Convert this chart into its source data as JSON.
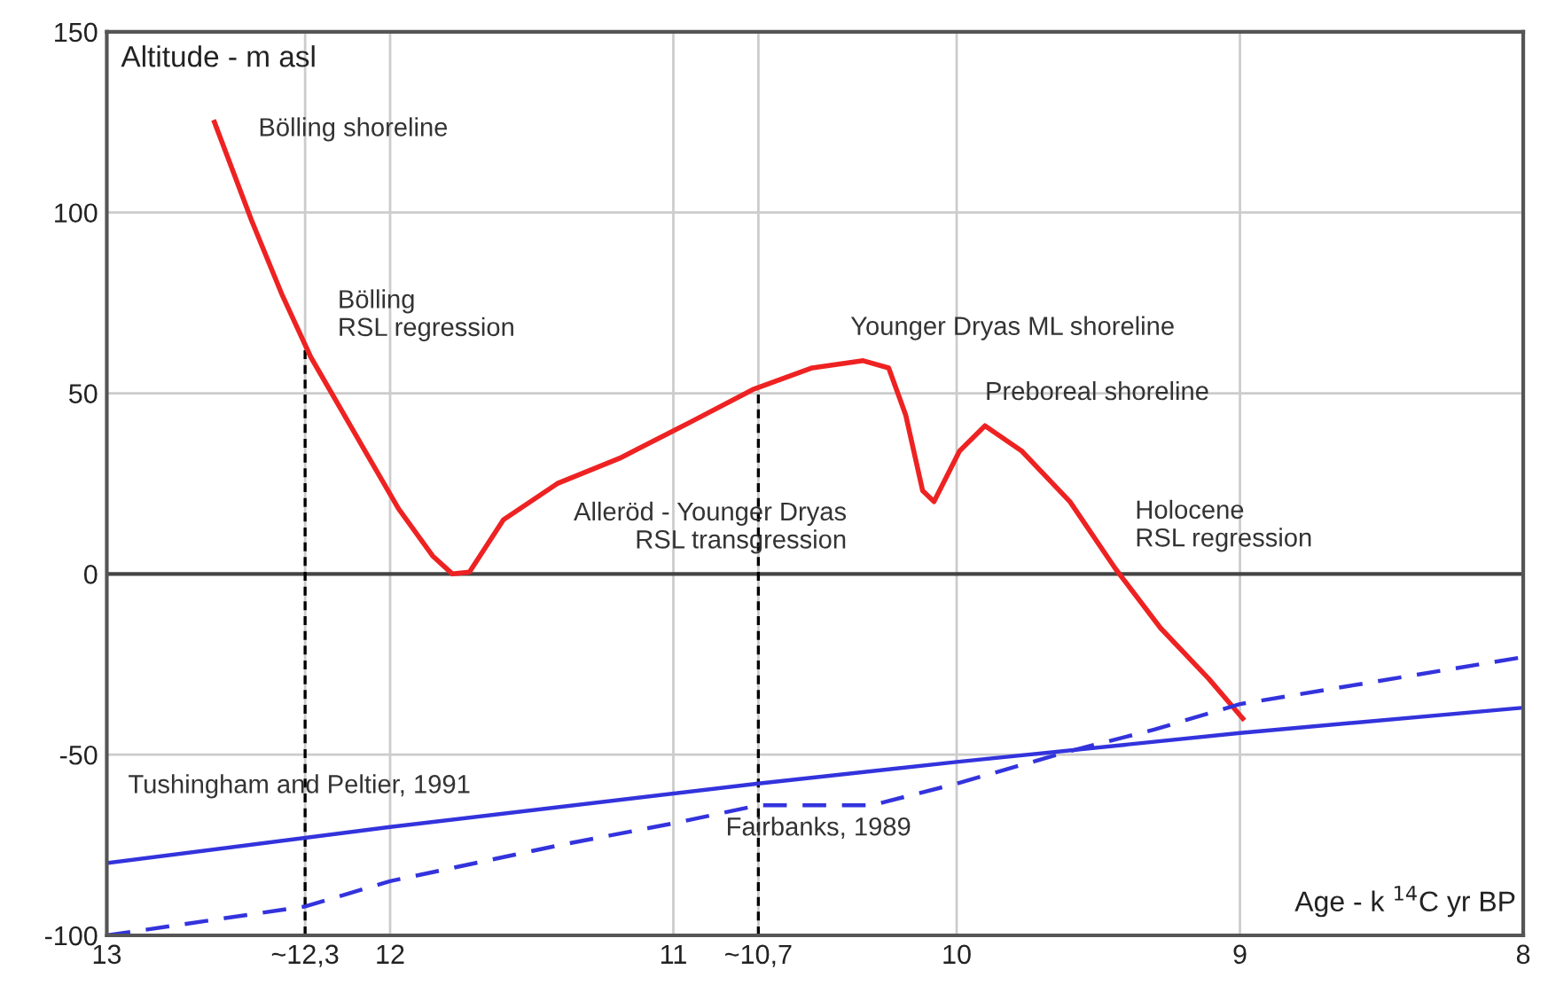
{
  "chart_data": {
    "type": "line",
    "xlabel": "Age - k $^{14}$C yr BP",
    "ylabel": "Altitude - m asl",
    "xlim": [
      13,
      8
    ],
    "ylim": [
      -100,
      150
    ],
    "xticks": [
      13,
      {
        "value": 12.3,
        "label": "~12,3"
      },
      12,
      11,
      {
        "value": 10.7,
        "label": "~10,7"
      },
      10,
      9,
      8
    ],
    "yticks": [
      -100,
      -50,
      0,
      50,
      100,
      150
    ],
    "grid": true,
    "legend": false,
    "marker": "none",
    "series": [
      {
        "color": "#ee2222",
        "line_style": "solid",
        "x": [
          12.62,
          12.49,
          12.38,
          12.28,
          12.14,
          11.97,
          11.85,
          11.78,
          11.72,
          11.6,
          11.41,
          11.19,
          10.94,
          10.72,
          10.51,
          10.33,
          10.24,
          10.18,
          10.12,
          10.08,
          9.99,
          9.9,
          9.77,
          9.6,
          9.44,
          9.28,
          9.11,
          8.99
        ],
        "values": [
          125,
          98,
          77,
          60,
          41,
          18,
          5,
          0,
          0.5,
          15,
          25,
          32,
          42,
          51,
          57,
          59,
          57,
          44,
          23,
          20,
          34,
          41,
          34,
          20,
          1.5,
          -15,
          -29,
          -40
        ]
      },
      {
        "name": "Tushingham and Peltier, 1991",
        "color": "#3333dd",
        "line_style": "solid",
        "x": [
          13,
          12,
          10.7,
          10,
          9,
          8
        ],
        "values": [
          -80,
          -70,
          -58,
          -52,
          -44,
          -37
        ]
      },
      {
        "name": "Fairbanks, 1989",
        "color": "#3333dd",
        "line_style": "dashed",
        "x": [
          13,
          12.3,
          12,
          11.4,
          11,
          10.7,
          10.3,
          10,
          9.6,
          9.3,
          9,
          8
        ],
        "values": [
          -100,
          -92,
          -85,
          -75,
          -69,
          -64,
          -64,
          -58,
          -49,
          -43,
          -36,
          -23
        ]
      }
    ],
    "ref_lines": [
      {
        "axis": "y",
        "value": 0,
        "color": "#444444",
        "line_style": "solid"
      },
      {
        "axis": "x",
        "value": 12.3,
        "color": "#000000",
        "line_style": "dashed"
      },
      {
        "axis": "x",
        "value": 10.7,
        "color": "#000000",
        "line_style": "dashed"
      }
    ],
    "annotations": [
      "Bölling shoreline",
      "Bölling\nRSL regression",
      "Alleröd - Younger Dryas\nRSL transgression",
      "Younger Dryas ML shoreline",
      "Preboreal shoreline",
      "Holocene\nRSL regression"
    ]
  }
}
